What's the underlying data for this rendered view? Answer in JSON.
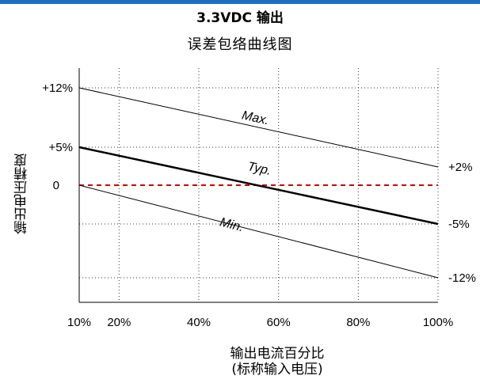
{
  "chart_data": {
    "type": "line",
    "title": "3.3VDC 输出",
    "subtitle": "误差包络曲线图",
    "xlabel_line1": "输出电流百分比",
    "xlabel_line2": "(标称输入电压)",
    "ylabel": "输出电压精度",
    "x_ticks": [
      {
        "v": 10,
        "label": "10%"
      },
      {
        "v": 20,
        "label": "20%"
      },
      {
        "v": 40,
        "label": "40%"
      },
      {
        "v": 60,
        "label": "60%"
      },
      {
        "v": 80,
        "label": "80%"
      },
      {
        "v": 100,
        "label": "100%"
      }
    ],
    "y_ticks_left": [
      {
        "v": 12,
        "label": "+12%"
      },
      {
        "v": 5,
        "label": "+5%"
      },
      {
        "v": 0,
        "label": "0"
      }
    ],
    "y_ticks_right": [
      {
        "v": 2,
        "label": "+2%"
      },
      {
        "v": -5,
        "label": "-5%"
      },
      {
        "v": -12,
        "label": "-12%"
      }
    ],
    "xlim": [
      10,
      100
    ],
    "ylim": [
      -15,
      15
    ],
    "grid": true,
    "series": [
      {
        "name": "Max.",
        "x": [
          10,
          100
        ],
        "y": [
          12,
          2
        ],
        "color": "#000000",
        "width": 1,
        "label_at": [
          54,
          8
        ]
      },
      {
        "name": "Typ.",
        "x": [
          10,
          100
        ],
        "y": [
          5,
          -5
        ],
        "color": "#000000",
        "width": 2.5,
        "label_at": [
          55,
          1.4
        ]
      },
      {
        "name": "Min.",
        "x": [
          10,
          100
        ],
        "y": [
          0,
          -12
        ],
        "color": "#000000",
        "width": 1,
        "label_at": [
          48,
          -5.6
        ]
      }
    ],
    "reference_line": {
      "y": 0,
      "color": "#cc0000",
      "style": "dashed"
    }
  },
  "colors": {
    "topbar": "#1a6fc0",
    "axis": "#000000",
    "grid": "#333333",
    "reference": "#cc0000"
  }
}
